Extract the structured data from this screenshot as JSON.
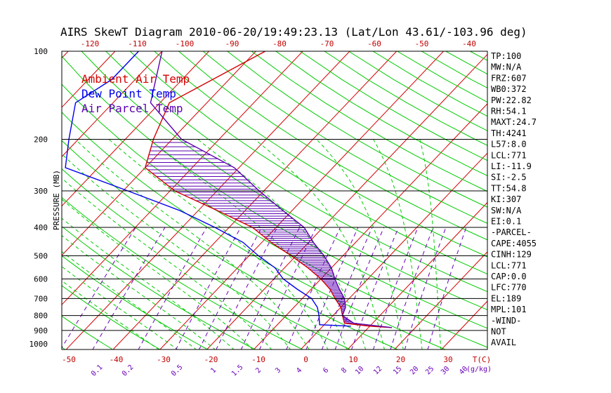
{
  "chart_data": {
    "type": "skewt",
    "title": "AIRS SkewT Diagram 2010-06-20/19:49:23.13 (Lat/Lon 43.61/-103.96 deg)",
    "ylabel": "PRESSURE (MB)",
    "xlabel": "T(C)",
    "mixing_ratio_unit": "(g/kg)",
    "pressure_ticks": [
      100,
      200,
      300,
      400,
      500,
      600,
      700,
      800,
      900,
      1000
    ],
    "isobar_lines": [
      200,
      300,
      400,
      500,
      600,
      700,
      800,
      900
    ],
    "temp_ticks_top": [
      -120,
      -110,
      -100,
      -90,
      -80,
      -70,
      -60,
      -50,
      -40
    ],
    "temp_ticks_bottom": [
      -50,
      -40,
      -30,
      -20,
      -10,
      0,
      10,
      20,
      30
    ],
    "mixing_ratio_labels": [
      "0.1",
      "0.2",
      "0.5",
      "1",
      "1.5",
      "2",
      "3",
      "4",
      "6",
      "8",
      "10",
      "12",
      "15",
      "20",
      "25",
      "30",
      "40"
    ],
    "legend": [
      {
        "label": "Ambient Air Temp",
        "color": "#d40000"
      },
      {
        "label": "Dew Point Temp",
        "color": "#0000ee"
      },
      {
        "label": "Air Parcel Temp",
        "color": "#5a00b0"
      }
    ],
    "series": [
      {
        "name": "Ambient Air Temp",
        "color": "#d40000",
        "points": [
          [
            100,
            -58
          ],
          [
            150,
            -68
          ],
          [
            200,
            -64
          ],
          [
            250,
            -60
          ],
          [
            300,
            -49
          ],
          [
            350,
            -36
          ],
          [
            400,
            -25
          ],
          [
            450,
            -18
          ],
          [
            500,
            -11
          ],
          [
            550,
            -5
          ],
          [
            600,
            0
          ],
          [
            650,
            4
          ],
          [
            700,
            7
          ],
          [
            750,
            10
          ],
          [
            800,
            12
          ],
          [
            850,
            14
          ],
          [
            870,
            20
          ],
          [
            880,
            25
          ]
        ]
      },
      {
        "name": "Dew Point Temp",
        "color": "#0000ee",
        "points": [
          [
            100,
            -85
          ],
          [
            125,
            -85
          ],
          [
            150,
            -88
          ],
          [
            200,
            -82
          ],
          [
            250,
            -77
          ],
          [
            300,
            -59
          ],
          [
            350,
            -44
          ],
          [
            400,
            -33
          ],
          [
            450,
            -24
          ],
          [
            500,
            -18
          ],
          [
            550,
            -12
          ],
          [
            600,
            -8
          ],
          [
            650,
            -3
          ],
          [
            700,
            2
          ],
          [
            750,
            5
          ],
          [
            800,
            7
          ],
          [
            860,
            9
          ],
          [
            870,
            16
          ]
        ]
      },
      {
        "name": "Air Parcel Temp",
        "color": "#5a00b0",
        "points": [
          [
            100,
            -80
          ],
          [
            150,
            -72
          ],
          [
            200,
            -58
          ],
          [
            250,
            -41
          ],
          [
            300,
            -31
          ],
          [
            350,
            -22
          ],
          [
            400,
            -14
          ],
          [
            450,
            -9
          ],
          [
            500,
            -4
          ],
          [
            550,
            0
          ],
          [
            600,
            3
          ],
          [
            650,
            6
          ],
          [
            700,
            9
          ],
          [
            750,
            11
          ],
          [
            800,
            12
          ],
          [
            850,
            16
          ],
          [
            880,
            25
          ]
        ]
      }
    ]
  },
  "indices": [
    "TP:100",
    "MW:N/A",
    "FRZ:607",
    "WB0:372",
    "PW:22.82",
    "RH:54.1",
    "MAXT:24.7",
    "TH:4241",
    "L57:8.0",
    "LCL:771",
    "LI:-11.9",
    "SI:-2.5",
    "TT:54.8",
    "KI:307",
    "SW:N/A",
    "EI:0.1",
    "-PARCEL-",
    "CAPE:4055",
    "CINH:129",
    "LCL:771",
    "CAP:0.0",
    "LFC:770",
    "EL:189",
    "MPL:101",
    "-WIND-",
    "NOT",
    "AVAIL"
  ],
  "colors": {
    "isotherm": "#d40000",
    "dry_adiabat": "#00cc00",
    "moist_adiabat": "#00cc00",
    "mixing_ratio": "#6a00b8",
    "isobar": "#000000",
    "hatch": "#5a00b0"
  }
}
